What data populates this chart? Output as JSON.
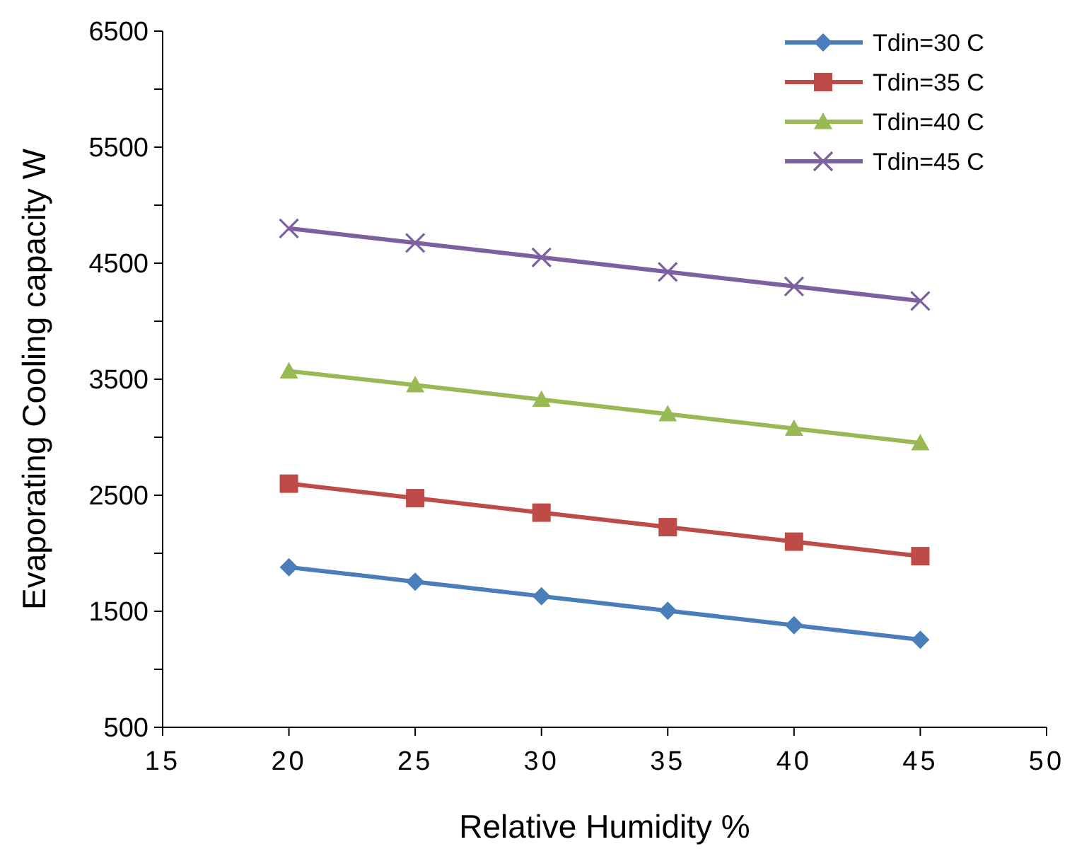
{
  "chart_data": {
    "type": "line",
    "xlabel": "Relative Humidity %",
    "ylabel": "Evaporating Cooling capacity W",
    "x": [
      20,
      25,
      30,
      35,
      40,
      45
    ],
    "series": [
      {
        "name": "Tdin=30 C",
        "color": "#4a7ebb",
        "marker": "diamond",
        "values": [
          1880,
          1755,
          1630,
          1505,
          1380,
          1255
        ]
      },
      {
        "name": "Tdin=35 C",
        "color": "#be4b48",
        "marker": "square",
        "values": [
          2600,
          2475,
          2350,
          2225,
          2100,
          1975
        ]
      },
      {
        "name": "Tdin=40 C",
        "color": "#98b954",
        "marker": "triangle",
        "values": [
          3570,
          3450,
          3325,
          3200,
          3075,
          2950
        ]
      },
      {
        "name": "Tdin=45 C",
        "color": "#7d60a0",
        "marker": "cross",
        "values": [
          4800,
          4675,
          4550,
          4425,
          4300,
          4175
        ]
      }
    ],
    "xlim": [
      15,
      50
    ],
    "xticks": [
      15,
      20,
      25,
      30,
      35,
      40,
      45,
      50
    ],
    "ylim": [
      500,
      6500
    ],
    "yticks": [
      500,
      {
        "value": 1000,
        "label": null
      },
      1500,
      {
        "value": 2000,
        "label": null
      },
      2500,
      {
        "value": 3000,
        "label": null
      },
      3500,
      {
        "value": 4000,
        "label": null
      },
      4500,
      {
        "value": 5000,
        "label": null
      },
      5500,
      {
        "value": 6000,
        "label": null
      },
      6500
    ],
    "grid": false,
    "legend": "top right",
    "line_style": "solid"
  }
}
